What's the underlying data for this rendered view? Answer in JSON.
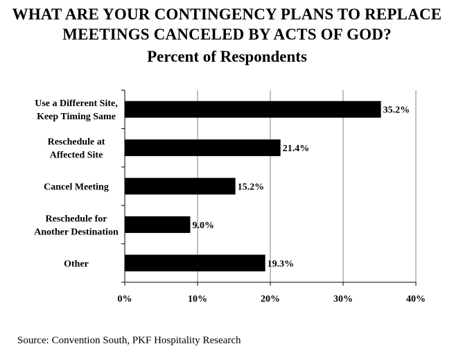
{
  "chart_data": {
    "type": "bar",
    "orientation": "horizontal",
    "title_lines": [
      "WHAT ARE YOUR CONTINGENCY PLANS TO REPLACE",
      "MEETINGS CANCELED BY ACTS OF GOD?"
    ],
    "subtitle": "Percent of Respondents",
    "categories": [
      [
        "Use a Different Site,",
        "Keep Timing Same"
      ],
      [
        "Reschedule at",
        "Affected Site"
      ],
      [
        "Cancel Meeting"
      ],
      [
        "Reschedule for",
        "Another Destination"
      ],
      [
        "Other"
      ]
    ],
    "values": [
      35.2,
      21.4,
      15.2,
      9.0,
      19.3
    ],
    "value_labels": [
      "35.2%",
      "21.4%",
      "15.2%",
      "9.0%",
      "19.3%"
    ],
    "xlim": [
      0,
      40
    ],
    "x_ticks": [
      0,
      10,
      20,
      30,
      40
    ],
    "x_tick_labels": [
      "0%",
      "10%",
      "20%",
      "30%",
      "40%"
    ],
    "xlabel": "",
    "ylabel": "",
    "grid": "vertical",
    "bar_color": "#000000",
    "grid_color": "#808080"
  },
  "source": "Source: Convention South, PKF Hospitality Research"
}
